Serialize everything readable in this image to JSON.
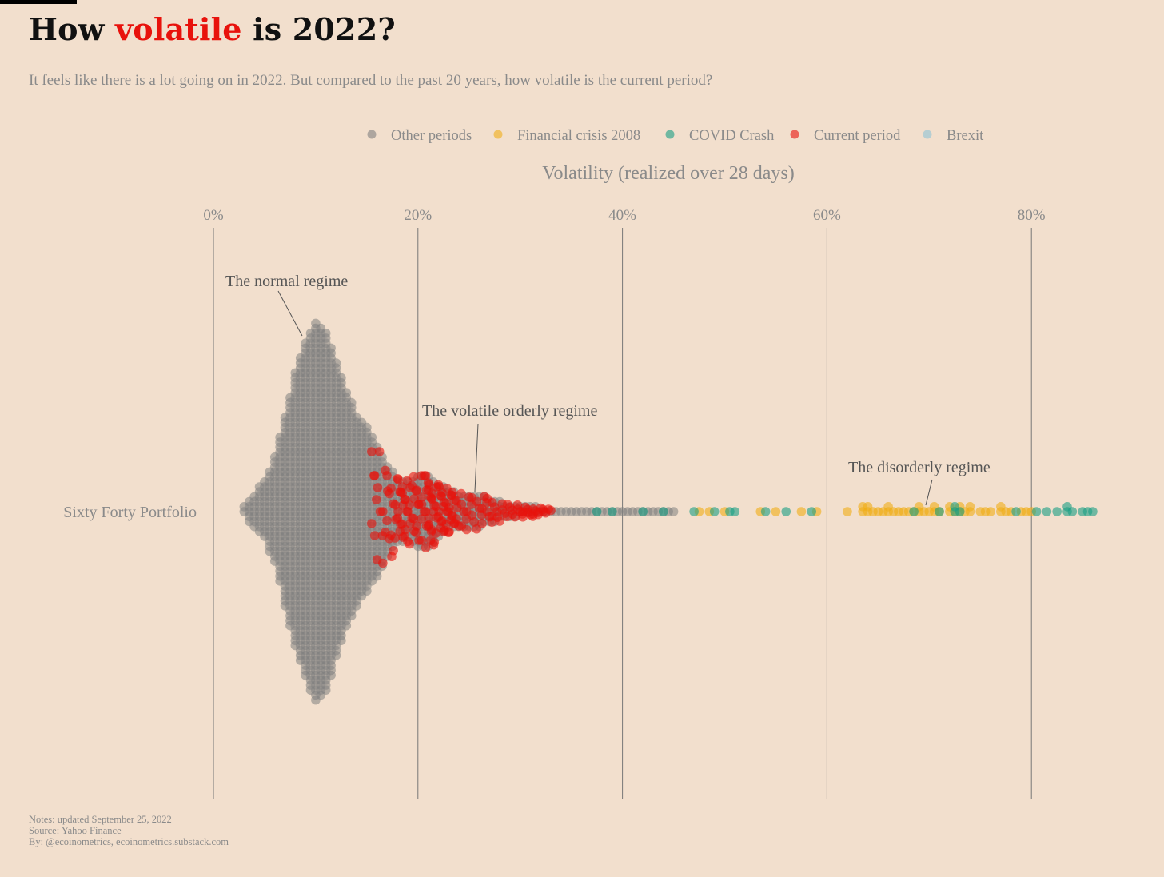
{
  "header": {
    "title_before": "How ",
    "title_highlight": "volatile",
    "title_after": " is 2022?",
    "subtitle": "It feels like there is a lot going on in 2022. But compared to the past 20 years, how volatile is the current period?"
  },
  "footer": {
    "notes": "Notes: updated September 25, 2022",
    "source": "Source: Yahoo Finance",
    "by": "By: @ecoinometrics, ecoinometrics.substack.com"
  },
  "colors": {
    "background": "#f2dfcd",
    "other": "#808080",
    "crisis2008": "#f0ae16",
    "covid": "#199e84",
    "current": "#e8120c",
    "brexit": "#8ec3d6",
    "title_highlight": "#e8120c"
  },
  "chart_data": {
    "type": "scatter",
    "subtype": "beeswarm",
    "title": "How volatile is 2022?",
    "xlabel": "Volatility (realized over 28 days)",
    "ylabel": "",
    "category": "Sixty Forty Portfolio",
    "xlim": [
      0,
      86
    ],
    "xticks": [
      0,
      20,
      40,
      60,
      80
    ],
    "xtick_labels": [
      "0%",
      "20%",
      "40%",
      "60%",
      "80%"
    ],
    "axis_position": "top",
    "grid": "vertical",
    "legend": {
      "position": "top",
      "entries": [
        {
          "name": "Other periods",
          "color": "#808080"
        },
        {
          "name": "Financial crisis 2008",
          "color": "#f0ae16"
        },
        {
          "name": "COVID Crash",
          "color": "#199e84"
        },
        {
          "name": "Current period",
          "color": "#e8120c"
        },
        {
          "name": "Brexit",
          "color": "#8ec3d6"
        }
      ]
    },
    "annotations": [
      {
        "text": "The normal regime",
        "x": 9.5
      },
      {
        "text": "The volatile orderly regime",
        "x": 25.5
      },
      {
        "text": "The disorderly regime",
        "x": 69
      }
    ],
    "distribution_profile_other": [
      [
        3,
        0.1
      ],
      [
        4,
        0.3
      ],
      [
        5,
        0.5
      ],
      [
        6,
        0.9
      ],
      [
        7,
        1.6
      ],
      [
        8,
        2.3
      ],
      [
        9,
        2.8
      ],
      [
        10,
        3.2
      ],
      [
        11,
        3.0
      ],
      [
        12,
        2.5
      ],
      [
        13,
        2.0
      ],
      [
        14,
        1.6
      ],
      [
        15,
        1.4
      ],
      [
        16,
        1.1
      ],
      [
        17,
        0.8
      ],
      [
        18,
        0.55
      ],
      [
        19,
        0.5
      ],
      [
        20,
        0.6
      ],
      [
        21,
        0.6
      ],
      [
        22,
        0.45
      ],
      [
        23,
        0.35
      ],
      [
        24,
        0.3
      ],
      [
        25,
        0.3
      ],
      [
        26,
        0.28
      ],
      [
        27,
        0.22
      ],
      [
        28,
        0.16
      ],
      [
        29,
        0.12
      ],
      [
        30,
        0.1
      ],
      [
        31,
        0.08
      ],
      [
        32,
        0.06
      ],
      [
        33,
        0.05
      ],
      [
        34,
        0.04
      ],
      [
        35,
        0.04
      ],
      [
        36,
        0.04
      ],
      [
        37,
        0.03
      ],
      [
        38,
        0.03
      ],
      [
        39,
        0.03
      ],
      [
        40,
        0.03
      ],
      [
        41,
        0.02
      ],
      [
        42,
        0.02
      ],
      [
        43,
        0.02
      ],
      [
        44,
        0.02
      ],
      [
        45,
        0.01
      ]
    ],
    "series": [
      {
        "name": "Current period",
        "x": [
          15.7,
          16.0,
          16.3,
          16.8,
          17.2,
          17.6,
          18.0,
          18.3,
          18.7,
          19.0,
          19.4,
          19.8,
          20.1,
          20.6,
          21.0,
          21.3,
          21.6,
          22.0,
          22.3,
          22.6,
          23.0,
          23.3,
          23.6,
          24.0,
          24.5,
          25.0,
          25.5,
          26.0,
          26.5,
          27.0,
          27.5,
          28.0,
          28.5,
          29.0,
          29.5,
          30.0,
          30.5,
          31.0,
          31.5,
          32.0,
          32.5,
          33.0
        ],
        "count": [
          4,
          4,
          3,
          5,
          5,
          5,
          6,
          6,
          7,
          6,
          6,
          5,
          6,
          7,
          8,
          7,
          7,
          6,
          6,
          6,
          6,
          5,
          5,
          4,
          4,
          4,
          4,
          3,
          4,
          4,
          4,
          3,
          3,
          3,
          3,
          3,
          4,
          3,
          4,
          3,
          2,
          2
        ]
      },
      {
        "name": "Financial crisis 2008",
        "x": [
          47.5,
          48.5,
          50,
          53.5,
          55,
          57.5,
          59,
          62,
          63.5,
          64,
          64.5,
          65,
          65.5,
          66,
          66.5,
          67,
          67.5,
          68,
          68.5,
          69,
          69.5,
          70,
          70.5,
          71,
          72,
          72.5,
          73,
          73.5,
          74,
          75,
          75.5,
          76,
          77,
          77.5,
          78,
          79,
          79.5,
          80
        ],
        "count": [
          1,
          1,
          1,
          1,
          1,
          1,
          1,
          1,
          2,
          2,
          1,
          1,
          1,
          2,
          1,
          1,
          1,
          1,
          1,
          2,
          1,
          1,
          2,
          1,
          2,
          1,
          2,
          1,
          2,
          1,
          1,
          1,
          2,
          1,
          1,
          1,
          1,
          1
        ]
      },
      {
        "name": "COVID Crash",
        "x": [
          37.5,
          39,
          42,
          44,
          47,
          49,
          50.5,
          51,
          54,
          56,
          58.5,
          68.5,
          71,
          72.5,
          73,
          78.5,
          80.5,
          81.5,
          82.5,
          83.5,
          84,
          85,
          85.5,
          86
        ],
        "count": [
          1,
          1,
          1,
          1,
          1,
          1,
          1,
          1,
          1,
          1,
          1,
          1,
          1,
          2,
          1,
          1,
          1,
          1,
          1,
          2,
          1,
          1,
          1,
          1
        ]
      }
    ]
  }
}
